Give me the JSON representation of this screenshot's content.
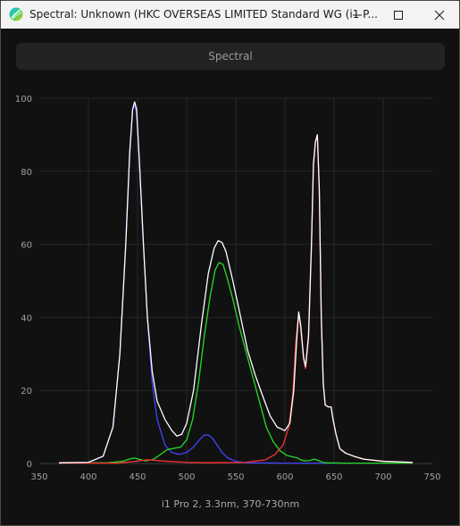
{
  "window": {
    "title": "Spectral: Unknown (HKC OVERSEAS LIMITED Standard WG (i1 P...",
    "controls": [
      "minimize",
      "maximize",
      "close"
    ]
  },
  "toolbar": {
    "spectral_button_label": "Spectral"
  },
  "chart_data": {
    "type": "line",
    "caption": "i1 Pro 2, 3.3nm, 370-730nm",
    "xlim": [
      350,
      750
    ],
    "ylim": [
      0,
      100
    ],
    "x_ticks": [
      350,
      400,
      450,
      500,
      550,
      600,
      650,
      700,
      750
    ],
    "y_ticks": [
      0,
      20,
      40,
      60,
      80,
      100
    ],
    "grid": true,
    "series": [
      {
        "color": "#ffffff",
        "points": [
          [
            370,
            0.2
          ],
          [
            400,
            0.3
          ],
          [
            415,
            2
          ],
          [
            425,
            10
          ],
          [
            432,
            30
          ],
          [
            438,
            60
          ],
          [
            442,
            85
          ],
          [
            445,
            97
          ],
          [
            447,
            99
          ],
          [
            449,
            97
          ],
          [
            452,
            82
          ],
          [
            456,
            60
          ],
          [
            460,
            40
          ],
          [
            465,
            25
          ],
          [
            470,
            17
          ],
          [
            478,
            12
          ],
          [
            485,
            9
          ],
          [
            490,
            7.5
          ],
          [
            495,
            8
          ],
          [
            500,
            11
          ],
          [
            507,
            20
          ],
          [
            515,
            38
          ],
          [
            522,
            52
          ],
          [
            528,
            59
          ],
          [
            532,
            61
          ],
          [
            536,
            60.5
          ],
          [
            540,
            58
          ],
          [
            547,
            50
          ],
          [
            555,
            40
          ],
          [
            562,
            31
          ],
          [
            570,
            24
          ],
          [
            578,
            18
          ],
          [
            585,
            13
          ],
          [
            592,
            10
          ],
          [
            600,
            9
          ],
          [
            605,
            11
          ],
          [
            609,
            20
          ],
          [
            612,
            34
          ],
          [
            614,
            41.5
          ],
          [
            616,
            38
          ],
          [
            619,
            29
          ],
          [
            621,
            26.5
          ],
          [
            624,
            35
          ],
          [
            627,
            60
          ],
          [
            629,
            82
          ],
          [
            631,
            88
          ],
          [
            633,
            90
          ],
          [
            635,
            75
          ],
          [
            637,
            40
          ],
          [
            639,
            22
          ],
          [
            641,
            16
          ],
          [
            644,
            15.5
          ],
          [
            647,
            15.5
          ],
          [
            649,
            12
          ],
          [
            652,
            8
          ],
          [
            656,
            4
          ],
          [
            662,
            2.8
          ],
          [
            670,
            2
          ],
          [
            680,
            1.2
          ],
          [
            700,
            0.6
          ],
          [
            730,
            0.3
          ]
        ]
      },
      {
        "color": "#4444ff",
        "points": [
          [
            370,
            0.1
          ],
          [
            400,
            0.3
          ],
          [
            415,
            2
          ],
          [
            425,
            10
          ],
          [
            432,
            30
          ],
          [
            438,
            60
          ],
          [
            442,
            85
          ],
          [
            445,
            97
          ],
          [
            447,
            98
          ],
          [
            449,
            96
          ],
          [
            452,
            82
          ],
          [
            456,
            60
          ],
          [
            460,
            40
          ],
          [
            465,
            22
          ],
          [
            470,
            12
          ],
          [
            478,
            5
          ],
          [
            485,
            3
          ],
          [
            492,
            2.5
          ],
          [
            500,
            3
          ],
          [
            507,
            4.5
          ],
          [
            513,
            6.5
          ],
          [
            518,
            7.8
          ],
          [
            522,
            7.8
          ],
          [
            526,
            7
          ],
          [
            531,
            5
          ],
          [
            536,
            3
          ],
          [
            542,
            1.5
          ],
          [
            550,
            0.6
          ],
          [
            560,
            0.2
          ],
          [
            600,
            0.1
          ],
          [
            730,
            0.1
          ]
        ]
      },
      {
        "color": "#22dd22",
        "points": [
          [
            370,
            0.1
          ],
          [
            420,
            0.2
          ],
          [
            435,
            0.6
          ],
          [
            443,
            1.3
          ],
          [
            447,
            1.5
          ],
          [
            451,
            1.2
          ],
          [
            458,
            0.7
          ],
          [
            465,
            1
          ],
          [
            472,
            2.2
          ],
          [
            480,
            3.8
          ],
          [
            488,
            4.2
          ],
          [
            494,
            4.5
          ],
          [
            500,
            6.5
          ],
          [
            506,
            12
          ],
          [
            512,
            22
          ],
          [
            518,
            35
          ],
          [
            524,
            46
          ],
          [
            529,
            53
          ],
          [
            533,
            55
          ],
          [
            537,
            54.5
          ],
          [
            541,
            51
          ],
          [
            547,
            45
          ],
          [
            553,
            38
          ],
          [
            560,
            31
          ],
          [
            567,
            24
          ],
          [
            574,
            17
          ],
          [
            581,
            10
          ],
          [
            588,
            6
          ],
          [
            595,
            3.5
          ],
          [
            602,
            2.2
          ],
          [
            608,
            1.8
          ],
          [
            612,
            1.6
          ],
          [
            616,
            1
          ],
          [
            620,
            0.7
          ],
          [
            625,
            0.8
          ],
          [
            630,
            1.2
          ],
          [
            634,
            0.8
          ],
          [
            640,
            0.2
          ],
          [
            660,
            0.1
          ],
          [
            730,
            0.1
          ]
        ]
      },
      {
        "color": "#ff3030",
        "points": [
          [
            370,
            0.1
          ],
          [
            430,
            0.1
          ],
          [
            445,
            0.5
          ],
          [
            460,
            1
          ],
          [
            480,
            0.6
          ],
          [
            500,
            0.3
          ],
          [
            520,
            0.2
          ],
          [
            560,
            0.3
          ],
          [
            580,
            1
          ],
          [
            590,
            2.5
          ],
          [
            598,
            5
          ],
          [
            604,
            10
          ],
          [
            608,
            19
          ],
          [
            611,
            33
          ],
          [
            614,
            41
          ],
          [
            616,
            37
          ],
          [
            619,
            28.5
          ],
          [
            621,
            26
          ],
          [
            624,
            34
          ],
          [
            627,
            59
          ],
          [
            629,
            81
          ],
          [
            631,
            88
          ],
          [
            633,
            90
          ],
          [
            635,
            74
          ],
          [
            637,
            40
          ],
          [
            639,
            22
          ],
          [
            641,
            16
          ],
          [
            644,
            15.5
          ],
          [
            647,
            15.5
          ],
          [
            649,
            12
          ],
          [
            652,
            8
          ],
          [
            656,
            4
          ],
          [
            662,
            2.8
          ],
          [
            670,
            2
          ],
          [
            680,
            1.2
          ],
          [
            700,
            0.6
          ],
          [
            730,
            0.3
          ]
        ]
      }
    ]
  }
}
